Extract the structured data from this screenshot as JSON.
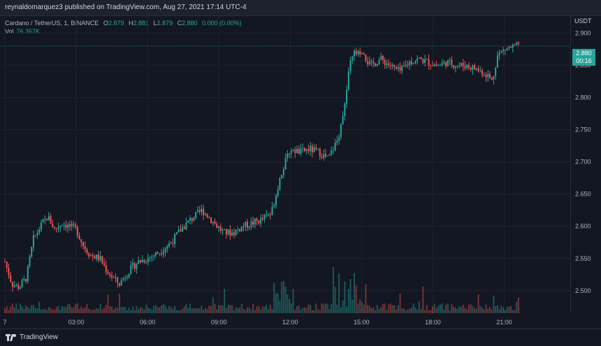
{
  "header": {
    "published_text": "reynaldomarquez3 published on TradingView.com, Aug 27, 2021 17:14 UTC-4"
  },
  "legend": {
    "symbol": "Cardano / TetherUS, 1, BINANCE",
    "open_label": "O",
    "open_value": "2.879",
    "high_label": "H",
    "high_value": "2.881",
    "low_label": "L",
    "low_value": "2.879",
    "close_label": "C",
    "close_value": "2.880",
    "change_value": "0.000 (0.00%)",
    "vol_label": "Vol",
    "vol_value": "76.357K"
  },
  "price_axis": {
    "currency": "USDT",
    "last_price": "2.880",
    "countdown": "00:16"
  },
  "footer": {
    "brand": "TradingView"
  },
  "colors": {
    "up": "#26a69a",
    "down": "#ef5350",
    "background": "#131722",
    "grid": "#1f2330"
  },
  "chart_data": {
    "type": "candlestick",
    "yticks": [
      "2.900",
      "2.850",
      "2.800",
      "2.750",
      "2.700",
      "2.650",
      "2.600",
      "2.550",
      "2.500"
    ],
    "ylim": [
      2.465,
      2.918
    ],
    "xticks": [
      "7",
      "03:00",
      "06:00",
      "09:00",
      "12:00",
      "15:00",
      "18:00",
      "21:00"
    ],
    "xtick_hours": [
      0,
      3,
      6,
      9,
      12,
      15,
      18,
      21
    ],
    "x_hours_range": [
      0,
      23.6
    ],
    "grid": true,
    "price_path": [
      {
        "h": 0.0,
        "p": 2.545
      },
      {
        "h": 0.3,
        "p": 2.51
      },
      {
        "h": 0.6,
        "p": 2.505
      },
      {
        "h": 0.9,
        "p": 2.52
      },
      {
        "h": 1.2,
        "p": 2.58
      },
      {
        "h": 1.5,
        "p": 2.6
      },
      {
        "h": 1.8,
        "p": 2.615
      },
      {
        "h": 2.1,
        "p": 2.595
      },
      {
        "h": 2.4,
        "p": 2.605
      },
      {
        "h": 2.7,
        "p": 2.6
      },
      {
        "h": 3.0,
        "p": 2.595
      },
      {
        "h": 3.3,
        "p": 2.57
      },
      {
        "h": 3.6,
        "p": 2.555
      },
      {
        "h": 4.0,
        "p": 2.55
      },
      {
        "h": 4.3,
        "p": 2.53
      },
      {
        "h": 4.8,
        "p": 2.51
      },
      {
        "h": 5.2,
        "p": 2.53
      },
      {
        "h": 5.6,
        "p": 2.545
      },
      {
        "h": 6.0,
        "p": 2.55
      },
      {
        "h": 6.5,
        "p": 2.56
      },
      {
        "h": 7.0,
        "p": 2.575
      },
      {
        "h": 7.4,
        "p": 2.595
      },
      {
        "h": 7.8,
        "p": 2.61
      },
      {
        "h": 8.3,
        "p": 2.625
      },
      {
        "h": 8.8,
        "p": 2.605
      },
      {
        "h": 9.2,
        "p": 2.59
      },
      {
        "h": 9.6,
        "p": 2.59
      },
      {
        "h": 10.0,
        "p": 2.6
      },
      {
        "h": 10.4,
        "p": 2.605
      },
      {
        "h": 10.8,
        "p": 2.61
      },
      {
        "h": 11.2,
        "p": 2.62
      },
      {
        "h": 11.6,
        "p": 2.68
      },
      {
        "h": 12.0,
        "p": 2.72
      },
      {
        "h": 12.4,
        "p": 2.715
      },
      {
        "h": 12.8,
        "p": 2.72
      },
      {
        "h": 13.2,
        "p": 2.715
      },
      {
        "h": 13.6,
        "p": 2.705
      },
      {
        "h": 14.0,
        "p": 2.735
      },
      {
        "h": 14.3,
        "p": 2.79
      },
      {
        "h": 14.5,
        "p": 2.85
      },
      {
        "h": 14.7,
        "p": 2.87
      },
      {
        "h": 15.0,
        "p": 2.865
      },
      {
        "h": 15.4,
        "p": 2.85
      },
      {
        "h": 15.8,
        "p": 2.86
      },
      {
        "h": 16.2,
        "p": 2.85
      },
      {
        "h": 16.6,
        "p": 2.84
      },
      {
        "h": 17.0,
        "p": 2.855
      },
      {
        "h": 17.4,
        "p": 2.86
      },
      {
        "h": 17.8,
        "p": 2.855
      },
      {
        "h": 18.2,
        "p": 2.85
      },
      {
        "h": 18.6,
        "p": 2.855
      },
      {
        "h": 19.0,
        "p": 2.85
      },
      {
        "h": 19.4,
        "p": 2.85
      },
      {
        "h": 19.8,
        "p": 2.845
      },
      {
        "h": 20.3,
        "p": 2.835
      },
      {
        "h": 20.5,
        "p": 2.825
      },
      {
        "h": 20.7,
        "p": 2.865
      },
      {
        "h": 21.0,
        "p": 2.875
      },
      {
        "h": 21.3,
        "p": 2.878
      },
      {
        "h": 21.6,
        "p": 2.88
      }
    ]
  }
}
